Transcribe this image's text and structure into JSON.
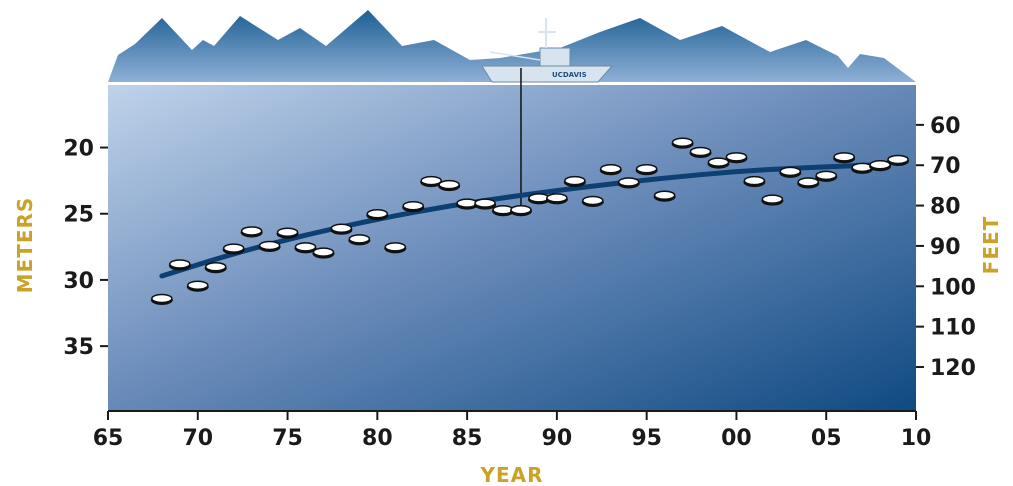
{
  "chart_data": {
    "type": "scatter",
    "xlabel": "YEAR",
    "ylabel_left": "METERS",
    "ylabel_right": "FEET",
    "boat_label": "UCDAVIS",
    "xlim": [
      1965,
      2010
    ],
    "ylim_meters": [
      15.2,
      39.9
    ],
    "x_ticks": [
      1965,
      1970,
      1975,
      1980,
      1985,
      1990,
      1995,
      2000,
      2005,
      2010
    ],
    "x_tick_labels": [
      "65",
      "70",
      "75",
      "80",
      "85",
      "90",
      "95",
      "00",
      "05",
      "10"
    ],
    "y_ticks_meters": [
      20,
      25,
      30,
      35
    ],
    "y_tick_labels_meters": [
      "20",
      "25",
      "30",
      "35"
    ],
    "y_ticks_feet": [
      60,
      70,
      80,
      90,
      100,
      110,
      120
    ],
    "y_tick_labels_feet": [
      "60",
      "70",
      "80",
      "90",
      "100",
      "110",
      "120"
    ],
    "series": [
      {
        "type": "scatter",
        "x": [
          1968,
          1969,
          1970,
          1971,
          1972,
          1973,
          1974,
          1975,
          1976,
          1977,
          1978,
          1979,
          1980,
          1981,
          1982,
          1983,
          1984,
          1985,
          1986,
          1987,
          1988,
          1989,
          1990,
          1991,
          1992,
          1993,
          1994,
          1995,
          1996,
          1997,
          1998,
          1999,
          2000,
          2001,
          2002,
          2003,
          2004,
          2005,
          2006,
          2007,
          2008,
          2009
        ],
        "y": [
          31.4,
          28.8,
          30.4,
          29.0,
          27.6,
          26.3,
          27.4,
          26.4,
          27.5,
          27.9,
          26.1,
          26.9,
          25.0,
          27.5,
          24.4,
          22.5,
          22.8,
          24.2,
          24.2,
          24.7,
          24.7,
          23.8,
          23.8,
          22.5,
          24.0,
          21.6,
          22.6,
          21.6,
          23.6,
          19.6,
          20.3,
          21.1,
          20.7,
          22.5,
          23.9,
          21.8,
          22.6,
          22.1,
          20.7,
          21.5,
          21.3,
          20.9
        ]
      },
      {
        "type": "line",
        "x": [
          1968,
          1972,
          1976,
          1980,
          1984,
          1988,
          1992,
          1996,
          2000,
          2004,
          2008
        ],
        "y": [
          29.7,
          28.0,
          26.6,
          25.4,
          24.4,
          23.6,
          22.9,
          22.3,
          21.8,
          21.5,
          21.3
        ]
      }
    ],
    "grid": false
  }
}
